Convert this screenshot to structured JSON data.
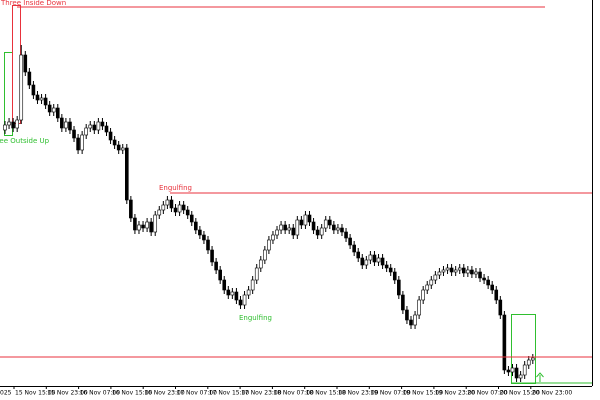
{
  "chart_data": {
    "type": "candlestick",
    "ylim": [
      15,
      400
    ],
    "x_labels": [
      "025",
      "15 Nov 15:00",
      "15 Nov 23:00",
      "16 Nov 07:00",
      "16 Nov 15:00",
      "16 Nov 23:00",
      "17 Nov 07:00",
      "17 Nov 15:00",
      "17 Nov 23:00",
      "18 Nov 07:00",
      "18 Nov 15:00",
      "18 Nov 23:00",
      "19 Nov 07:00",
      "19 Nov 15:00",
      "19 Nov 23:00",
      "20 Nov 07:00",
      "20 Nov 15:00",
      "20 Nov 23:00"
    ],
    "open": [
      270,
      275,
      278,
      272,
      280,
      345,
      328,
      315,
      305,
      300,
      302,
      295,
      288,
      292,
      282,
      272,
      278,
      270,
      262,
      250,
      265,
      272,
      275,
      270,
      278,
      274,
      268,
      260,
      255,
      250,
      252,
      200,
      182,
      170,
      175,
      172,
      178,
      168,
      185,
      190,
      195,
      200,
      192,
      188,
      195,
      190,
      185,
      178,
      170,
      165,
      160,
      150,
      138,
      130,
      120,
      110,
      105,
      108,
      100,
      95,
      105,
      110,
      120,
      132,
      140,
      150,
      160,
      165,
      170,
      175,
      170,
      172,
      165,
      180,
      175,
      185,
      178,
      170,
      165,
      172,
      180,
      175,
      170,
      172,
      168,
      162,
      155,
      148,
      142,
      135,
      140,
      145,
      138,
      142,
      135,
      132,
      128,
      120,
      105,
      90,
      80,
      75,
      85,
      100,
      110,
      115,
      120,
      125,
      128,
      130,
      132,
      128,
      130,
      132,
      127,
      130,
      126,
      128,
      122,
      120,
      115,
      110,
      100,
      85,
      30,
      28,
      32,
      22,
      25,
      35,
      40
    ],
    "high": [
      279,
      282,
      282,
      284,
      355,
      349,
      332,
      319,
      309,
      306,
      306,
      299,
      296,
      296,
      286,
      282,
      282,
      274,
      266,
      269,
      276,
      279,
      279,
      282,
      282,
      278,
      272,
      264,
      259,
      256,
      256,
      204,
      186,
      179,
      179,
      182,
      182,
      189,
      194,
      199,
      204,
      204,
      196,
      199,
      199,
      194,
      189,
      182,
      174,
      169,
      164,
      154,
      142,
      134,
      124,
      114,
      112,
      112,
      104,
      109,
      114,
      124,
      136,
      144,
      154,
      164,
      169,
      174,
      179,
      179,
      176,
      176,
      184,
      184,
      189,
      189,
      182,
      174,
      176,
      184,
      184,
      179,
      176,
      176,
      172,
      166,
      159,
      152,
      146,
      144,
      149,
      149,
      146,
      146,
      139,
      136,
      132,
      124,
      109,
      94,
      84,
      89,
      104,
      114,
      119,
      124,
      129,
      132,
      134,
      136,
      136,
      134,
      136,
      136,
      134,
      134,
      132,
      132,
      126,
      124,
      119,
      114,
      104,
      89,
      34,
      36,
      36,
      29,
      39,
      44,
      46
    ],
    "low": [
      266,
      271,
      268,
      268,
      276,
      324,
      311,
      301,
      296,
      296,
      291,
      284,
      284,
      278,
      268,
      268,
      266,
      258,
      246,
      246,
      261,
      268,
      266,
      266,
      270,
      264,
      256,
      251,
      246,
      246,
      196,
      178,
      166,
      166,
      168,
      168,
      164,
      164,
      181,
      186,
      191,
      188,
      184,
      184,
      186,
      181,
      174,
      166,
      161,
      156,
      146,
      134,
      126,
      116,
      106,
      101,
      101,
      96,
      91,
      91,
      101,
      106,
      116,
      128,
      136,
      146,
      156,
      161,
      166,
      166,
      166,
      161,
      161,
      171,
      171,
      174,
      166,
      161,
      161,
      168,
      171,
      166,
      166,
      164,
      158,
      151,
      144,
      138,
      131,
      131,
      136,
      134,
      134,
      131,
      128,
      124,
      116,
      101,
      86,
      76,
      71,
      71,
      81,
      96,
      106,
      111,
      116,
      121,
      124,
      126,
      124,
      124,
      126,
      123,
      123,
      122,
      122,
      118,
      116,
      111,
      106,
      96,
      81,
      26,
      24,
      24,
      18,
      18,
      21,
      31,
      36
    ],
    "close": [
      275,
      278,
      272,
      280,
      345,
      328,
      315,
      305,
      300,
      302,
      295,
      288,
      292,
      282,
      272,
      278,
      270,
      262,
      250,
      265,
      272,
      275,
      270,
      278,
      274,
      268,
      260,
      255,
      250,
      252,
      200,
      182,
      170,
      175,
      172,
      178,
      168,
      185,
      190,
      195,
      200,
      192,
      188,
      195,
      190,
      185,
      178,
      170,
      165,
      160,
      150,
      138,
      130,
      120,
      110,
      105,
      108,
      100,
      95,
      105,
      110,
      120,
      132,
      140,
      150,
      160,
      165,
      170,
      175,
      170,
      172,
      165,
      180,
      175,
      185,
      178,
      170,
      165,
      172,
      180,
      175,
      170,
      172,
      168,
      162,
      155,
      148,
      142,
      135,
      140,
      145,
      138,
      142,
      135,
      132,
      128,
      120,
      105,
      90,
      80,
      75,
      85,
      100,
      110,
      115,
      120,
      125,
      128,
      130,
      132,
      128,
      130,
      132,
      127,
      130,
      126,
      128,
      122,
      120,
      115,
      110,
      100,
      85,
      30,
      28,
      32,
      22,
      25,
      35,
      40,
      42
    ],
    "up_color": "#ffffff",
    "down_color": "#000000",
    "outline_color": "#000000",
    "annotations": [
      {
        "text": "Three Inside Down",
        "color": "#e8323c",
        "level": 393
      },
      {
        "text": "Three Outside Up",
        "color": "#2fbf2f"
      },
      {
        "text": "Engulfing",
        "color": "#e8323c",
        "level": 207
      },
      {
        "text": "Engulfing",
        "color": "#2fbf2f"
      }
    ],
    "levels": [
      {
        "value": 43,
        "color": "#e8323c"
      },
      {
        "value": 17,
        "color": "#2fbf2f"
      }
    ]
  }
}
